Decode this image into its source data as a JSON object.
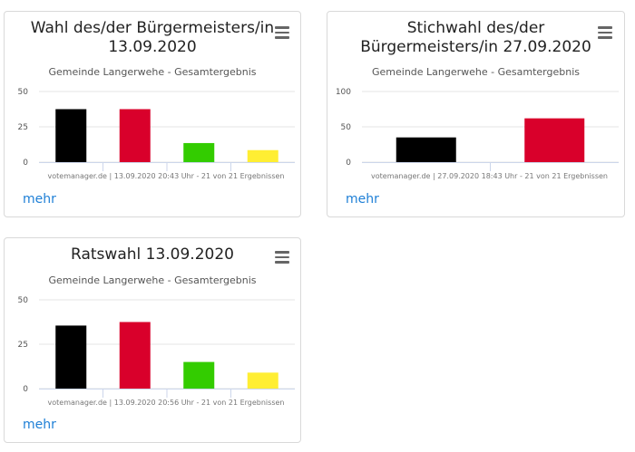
{
  "charts": [
    {
      "title_lines": [
        "Wahl des/der Bürgermeisters/in",
        "13.09.2020"
      ],
      "subtitle": "Gemeinde Langerwehe - Gesamtergebnis",
      "credit": "votemanager.de | 13.09.2020 20:43 Uhr - 21 von 21 Ergebnissen",
      "more_label": "mehr"
    },
    {
      "title_lines": [
        "Stichwahl des/der",
        "Bürgermeisters/in 27.09.2020"
      ],
      "subtitle": "Gemeinde Langerwehe - Gesamtergebnis",
      "credit": "votemanager.de | 27.09.2020 18:43 Uhr - 21 von 21 Ergebnissen",
      "more_label": "mehr"
    },
    {
      "title_lines": [
        "Ratswahl 13.09.2020"
      ],
      "subtitle": "Gemeinde Langerwehe - Gesamtergebnis",
      "credit": "votemanager.de | 13.09.2020 20:56 Uhr - 21 von 21 Ergebnissen",
      "more_label": "mehr"
    }
  ],
  "icons": {
    "menu": "hamburger-menu-icon"
  },
  "chart_data": [
    {
      "type": "bar",
      "title": "Wahl des/der Bürgermeisters/in 13.09.2020",
      "subtitle": "Gemeinde Langerwehe - Gesamtergebnis",
      "values": [
        37.5,
        37.5,
        13.5,
        8.5
      ],
      "colors": [
        "#000000",
        "#d9002b",
        "#33cc00",
        "#ffee33"
      ],
      "yticks": [
        0,
        25,
        50
      ],
      "ylim": [
        0,
        50
      ],
      "grid": true
    },
    {
      "type": "bar",
      "title": "Stichwahl des/der Bürgermeisters/in 27.09.2020",
      "subtitle": "Gemeinde Langerwehe - Gesamtergebnis",
      "values": [
        35,
        62
      ],
      "colors": [
        "#000000",
        "#d9002b"
      ],
      "yticks": [
        0,
        50,
        100
      ],
      "ylim": [
        0,
        100
      ],
      "grid": true
    },
    {
      "type": "bar",
      "title": "Ratswahl 13.09.2020",
      "subtitle": "Gemeinde Langerwehe - Gesamtergebnis",
      "values": [
        35.5,
        37.5,
        15,
        9
      ],
      "colors": [
        "#000000",
        "#d9002b",
        "#33cc00",
        "#ffee33"
      ],
      "yticks": [
        0,
        25,
        50
      ],
      "ylim": [
        0,
        50
      ],
      "grid": true
    }
  ]
}
